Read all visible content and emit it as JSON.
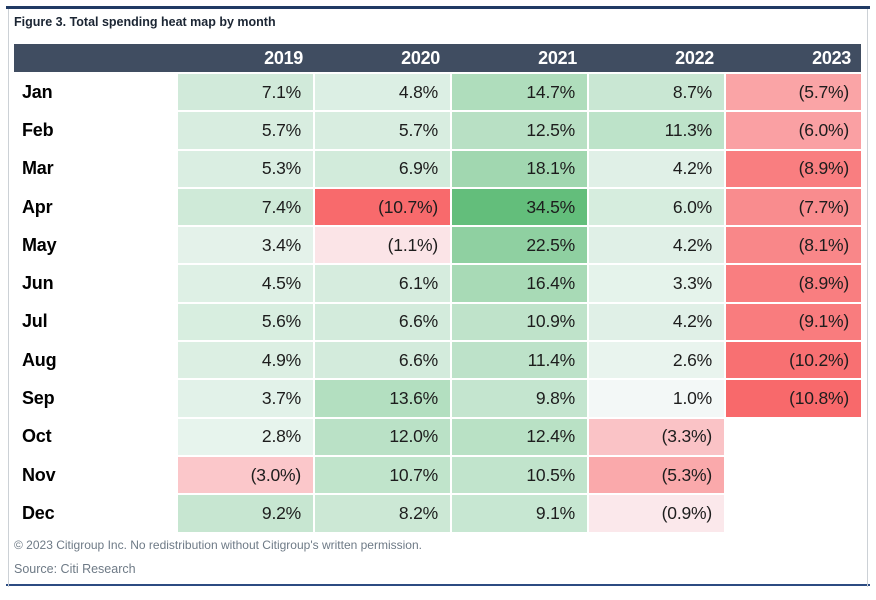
{
  "figure": {
    "title": "Figure 3. Total spending heat map by month",
    "copyright": "© 2023 Citigroup Inc. No redistribution without Citigroup's written permission.",
    "source": "Source: Citi Research"
  },
  "colors": {
    "header_bg": "#404d61",
    "header_text": "#ffffff",
    "top_rule": "#203a64",
    "bottom_rule": "#2c4b82",
    "frame_side": "#ccd1d6",
    "positive_max": "#63be7b",
    "negative_max": "#f8696b",
    "midpoint": "#fcfcff",
    "empty_cell": "#ffffff",
    "cell_text": "#1d1d1d",
    "title_text": "#1b2533",
    "footer_text": "#6e7a86"
  },
  "chart_data": {
    "type": "heatmap",
    "title": "Figure 3. Total spending heat map by month",
    "unit": "percent",
    "negative_format": "parentheses",
    "columns": [
      "2019",
      "2020",
      "2021",
      "2022",
      "2023"
    ],
    "rows": [
      "Jan",
      "Feb",
      "Mar",
      "Apr",
      "May",
      "Jun",
      "Jul",
      "Aug",
      "Sep",
      "Oct",
      "Nov",
      "Dec"
    ],
    "values": [
      [
        7.1,
        4.8,
        14.7,
        8.7,
        -5.7
      ],
      [
        5.7,
        5.7,
        12.5,
        11.3,
        -6.0
      ],
      [
        5.3,
        6.9,
        18.1,
        4.2,
        -8.9
      ],
      [
        7.4,
        -10.7,
        34.5,
        6.0,
        -7.7
      ],
      [
        3.4,
        -1.1,
        22.5,
        4.2,
        -8.1
      ],
      [
        4.5,
        6.1,
        16.4,
        3.3,
        -8.9
      ],
      [
        5.6,
        6.6,
        10.9,
        4.2,
        -9.1
      ],
      [
        4.9,
        6.6,
        11.4,
        2.6,
        -10.2
      ],
      [
        3.7,
        13.6,
        9.8,
        1.0,
        -10.8
      ],
      [
        2.8,
        12.0,
        12.4,
        -3.3,
        null
      ],
      [
        -3.0,
        10.7,
        10.5,
        -5.3,
        null
      ],
      [
        9.2,
        8.2,
        9.1,
        -0.9,
        null
      ]
    ],
    "scale": {
      "min": -10.8,
      "mid": 0,
      "max": 34.5
    },
    "legend": "none",
    "grid": "white 2px separators"
  }
}
